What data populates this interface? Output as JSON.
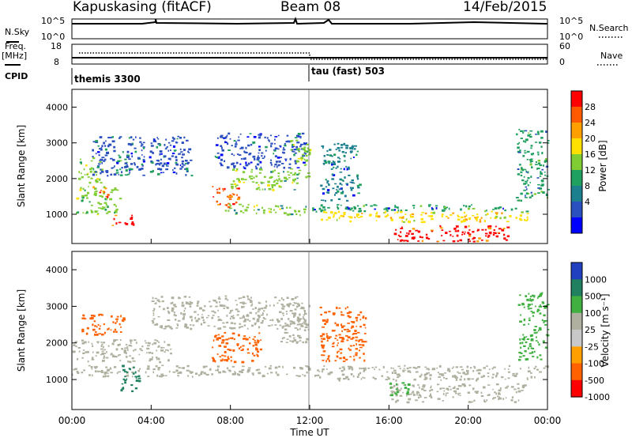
{
  "header": {
    "station": "Kapuskasing (fitACF)",
    "beam": "Beam 08",
    "date": "14/Feb/2015"
  },
  "top_panels": {
    "nsky_label": "N.Sky",
    "nsky_ticks": [
      "10^5",
      "10^0"
    ],
    "nsearch_label": "N.Search",
    "nsearch_ticks": [
      "10^5",
      "10^0"
    ],
    "freq_label": "Freq.",
    "freq_unit": "[MHz]",
    "freq_ticks": [
      "18",
      "8"
    ],
    "nave_label": "Nave",
    "nave_ticks": [
      "60",
      "0"
    ],
    "cpid_label": "CPID",
    "cpid_1": "themis 3300",
    "cpid_2": "tau (fast) 503"
  },
  "power_colorbar": {
    "label": "Power [dB]",
    "ticks": [
      "28",
      "24",
      "20",
      "16",
      "12",
      "8",
      "4"
    ],
    "colors": [
      "#ff0000",
      "#ff5a00",
      "#ffa000",
      "#ffe000",
      "#7fcc33",
      "#20a060",
      "#1b7f8e",
      "#2a4fbf",
      "#0000ff"
    ]
  },
  "velocity_colorbar": {
    "label": "Velocity [m s⁻¹]",
    "ticks": [
      "1000",
      "500",
      "100",
      "25",
      "-25",
      "-100",
      "-500",
      "-1000"
    ],
    "colors": [
      "#2040c0",
      "#208060",
      "#40b040",
      "#b0b0a0",
      "#c8c8c8",
      "#ffa000",
      "#ff6000",
      "#ff0000"
    ]
  },
  "x_axis": {
    "ticks": [
      "00:00",
      "04:00",
      "08:00",
      "12:00",
      "16:00",
      "20:00",
      "00:00"
    ],
    "label": "Time UT"
  },
  "chart_data": [
    {
      "type": "heatmap",
      "title": "",
      "ylabel": "Slant Range [km]",
      "xlim_hours": [
        0,
        24
      ],
      "ylim_km": [
        180,
        4500
      ],
      "y_ticks": [
        1000,
        2000,
        3000,
        4000
      ],
      "x_ticks_hours": [
        0,
        4,
        8,
        12,
        16,
        20,
        24
      ],
      "quantity": "Power [dB]",
      "regions": [
        {
          "t0": 0.2,
          "t1": 2.4,
          "r0": 1000,
          "r1": 1800,
          "value": 14
        },
        {
          "t0": 1.0,
          "t1": 1.8,
          "r0": 1500,
          "r1": 1800,
          "value": 26
        },
        {
          "t0": 2.0,
          "t1": 3.2,
          "r0": 700,
          "r1": 1000,
          "value": 28
        },
        {
          "t0": 2.2,
          "t1": 3.0,
          "r0": 2100,
          "r1": 2700,
          "value": 10
        },
        {
          "t0": 0.3,
          "t1": 1.5,
          "r0": 1900,
          "r1": 2600,
          "value": 14
        },
        {
          "t0": 1.0,
          "t1": 6.0,
          "r0": 2100,
          "r1": 3200,
          "value": 5
        },
        {
          "t0": 7.0,
          "t1": 8.4,
          "r0": 1200,
          "r1": 1800,
          "value": 26
        },
        {
          "t0": 7.5,
          "t1": 11.8,
          "r0": 1000,
          "r1": 1300,
          "value": 12
        },
        {
          "t0": 8.0,
          "t1": 11.5,
          "r0": 1700,
          "r1": 2300,
          "value": 12
        },
        {
          "t0": 7.2,
          "t1": 11.8,
          "r0": 2300,
          "r1": 3300,
          "value": 5
        },
        {
          "t0": 11.0,
          "t1": 12.0,
          "r0": 2000,
          "r1": 3100,
          "value": 14
        },
        {
          "t0": 12.0,
          "t1": 23.0,
          "r0": 1100,
          "r1": 1300,
          "value": 8
        },
        {
          "t0": 12.5,
          "t1": 23.0,
          "r0": 800,
          "r1": 1100,
          "value": 18
        },
        {
          "t0": 16.2,
          "t1": 22.0,
          "r0": 250,
          "r1": 700,
          "value": 28
        },
        {
          "t0": 12.5,
          "t1": 14.5,
          "r0": 1400,
          "r1": 3000,
          "value": 6
        },
        {
          "t0": 22.4,
          "t1": 24.0,
          "r0": 1400,
          "r1": 3400,
          "value": 10
        }
      ]
    },
    {
      "type": "heatmap",
      "title": "",
      "ylabel": "Slant Range [km]",
      "xlim_hours": [
        0,
        24
      ],
      "ylim_km": [
        180,
        4500
      ],
      "y_ticks": [
        1000,
        2000,
        3000,
        4000
      ],
      "x_ticks_hours": [
        0,
        4,
        8,
        12,
        16,
        20,
        24
      ],
      "quantity": "Velocity [m s⁻¹]",
      "regions": [
        {
          "t0": 0.0,
          "t1": 12.0,
          "r0": 1100,
          "r1": 1400,
          "value": 0
        },
        {
          "t0": 0.0,
          "t1": 5.0,
          "r0": 1500,
          "r1": 2100,
          "value": 0
        },
        {
          "t0": 0.4,
          "t1": 2.6,
          "r0": 2200,
          "r1": 2800,
          "value": -200
        },
        {
          "t0": 2.4,
          "t1": 3.4,
          "r0": 700,
          "r1": 1400,
          "value": 300
        },
        {
          "t0": 7.0,
          "t1": 9.5,
          "r0": 1500,
          "r1": 2300,
          "value": -200
        },
        {
          "t0": 4.0,
          "t1": 11.8,
          "r0": 2400,
          "r1": 3300,
          "value": 0
        },
        {
          "t0": 10.5,
          "t1": 12.0,
          "r0": 2000,
          "r1": 3100,
          "value": 0
        },
        {
          "t0": 12.0,
          "t1": 24.0,
          "r0": 1000,
          "r1": 1400,
          "value": 0
        },
        {
          "t0": 16.0,
          "t1": 22.8,
          "r0": 400,
          "r1": 900,
          "value": 0
        },
        {
          "t0": 16.0,
          "t1": 17.0,
          "r0": 600,
          "r1": 1000,
          "value": 80
        },
        {
          "t0": 12.5,
          "t1": 14.8,
          "r0": 1500,
          "r1": 3000,
          "value": -150
        },
        {
          "t0": 22.5,
          "t1": 24.0,
          "r0": 1500,
          "r1": 3400,
          "value": 60
        }
      ]
    }
  ]
}
